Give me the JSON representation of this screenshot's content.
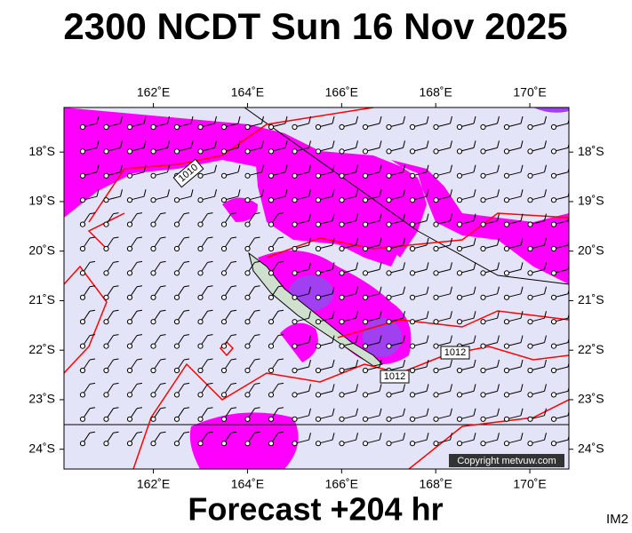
{
  "header": {
    "title": "2300 NCDT Sun 16 Nov 2025"
  },
  "map": {
    "lonlim": [
      160.1,
      170.83
    ],
    "latlim": [
      17.1,
      24.4
    ],
    "lon_ticks": [
      {
        "value": 162,
        "label": "162˚E"
      },
      {
        "value": 164,
        "label": "164˚E"
      },
      {
        "value": 166,
        "label": "166˚E"
      },
      {
        "value": 168,
        "label": "168˚E"
      },
      {
        "value": 170,
        "label": "170˚E"
      }
    ],
    "lat_ticks": [
      {
        "value": 18,
        "label": "18˚S"
      },
      {
        "value": 19,
        "label": "19˚S"
      },
      {
        "value": 20,
        "label": "20˚S"
      },
      {
        "value": 21,
        "label": "21˚S"
      },
      {
        "value": 22,
        "label": "22˚S"
      },
      {
        "value": 23,
        "label": "23˚S"
      },
      {
        "value": 24,
        "label": "24˚S"
      }
    ],
    "isobar_labels": [
      "1010",
      "1012",
      "1012"
    ],
    "copyright": "Copyright metvuw.com"
  },
  "footer": {
    "forecast": "Forecast +204 hr",
    "id": "IM2"
  }
}
